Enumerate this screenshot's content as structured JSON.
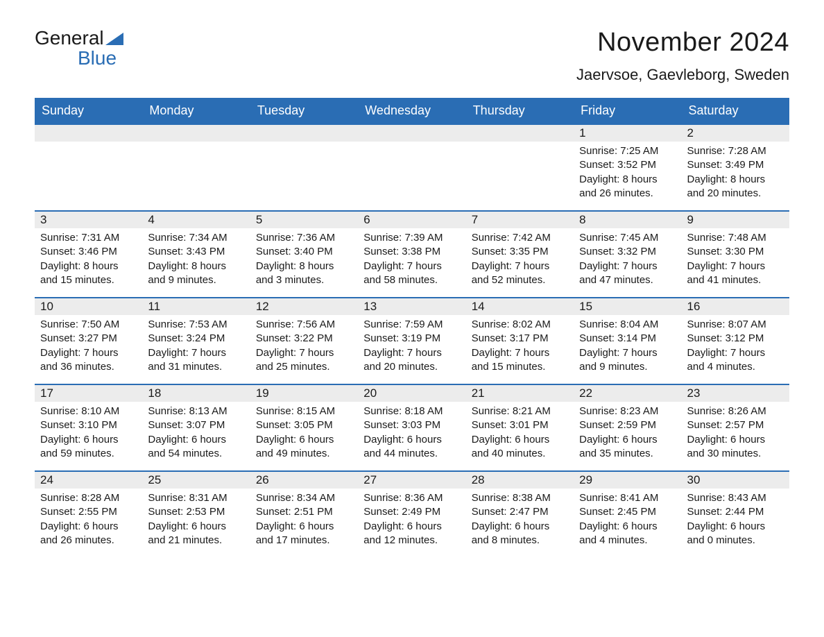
{
  "logo": {
    "word1": "General",
    "word2": "Blue"
  },
  "title": "November 2024",
  "location": "Jaervsoe, Gaevleborg, Sweden",
  "colors": {
    "brand_blue": "#2a6db4",
    "header_bg": "#2a6db4",
    "header_text": "#ffffff",
    "daynum_bg": "#ececec",
    "row_border": "#2a6db4",
    "text": "#1a1a1a",
    "page_bg": "#ffffff"
  },
  "typography": {
    "month_title_fontsize": 38,
    "location_fontsize": 22,
    "dayheader_fontsize": 18,
    "daynum_fontsize": 17,
    "body_fontsize": 15,
    "logo_fontsize": 28
  },
  "day_headers": [
    "Sunday",
    "Monday",
    "Tuesday",
    "Wednesday",
    "Thursday",
    "Friday",
    "Saturday"
  ],
  "labels": {
    "sunrise": "Sunrise",
    "sunset": "Sunset",
    "daylight": "Daylight"
  },
  "weeks": [
    [
      null,
      null,
      null,
      null,
      null,
      {
        "n": "1",
        "sunrise": "7:25 AM",
        "sunset": "3:52 PM",
        "dl1": "8 hours",
        "dl2": "and 26 minutes."
      },
      {
        "n": "2",
        "sunrise": "7:28 AM",
        "sunset": "3:49 PM",
        "dl1": "8 hours",
        "dl2": "and 20 minutes."
      }
    ],
    [
      {
        "n": "3",
        "sunrise": "7:31 AM",
        "sunset": "3:46 PM",
        "dl1": "8 hours",
        "dl2": "and 15 minutes."
      },
      {
        "n": "4",
        "sunrise": "7:34 AM",
        "sunset": "3:43 PM",
        "dl1": "8 hours",
        "dl2": "and 9 minutes."
      },
      {
        "n": "5",
        "sunrise": "7:36 AM",
        "sunset": "3:40 PM",
        "dl1": "8 hours",
        "dl2": "and 3 minutes."
      },
      {
        "n": "6",
        "sunrise": "7:39 AM",
        "sunset": "3:38 PM",
        "dl1": "7 hours",
        "dl2": "and 58 minutes."
      },
      {
        "n": "7",
        "sunrise": "7:42 AM",
        "sunset": "3:35 PM",
        "dl1": "7 hours",
        "dl2": "and 52 minutes."
      },
      {
        "n": "8",
        "sunrise": "7:45 AM",
        "sunset": "3:32 PM",
        "dl1": "7 hours",
        "dl2": "and 47 minutes."
      },
      {
        "n": "9",
        "sunrise": "7:48 AM",
        "sunset": "3:30 PM",
        "dl1": "7 hours",
        "dl2": "and 41 minutes."
      }
    ],
    [
      {
        "n": "10",
        "sunrise": "7:50 AM",
        "sunset": "3:27 PM",
        "dl1": "7 hours",
        "dl2": "and 36 minutes."
      },
      {
        "n": "11",
        "sunrise": "7:53 AM",
        "sunset": "3:24 PM",
        "dl1": "7 hours",
        "dl2": "and 31 minutes."
      },
      {
        "n": "12",
        "sunrise": "7:56 AM",
        "sunset": "3:22 PM",
        "dl1": "7 hours",
        "dl2": "and 25 minutes."
      },
      {
        "n": "13",
        "sunrise": "7:59 AM",
        "sunset": "3:19 PM",
        "dl1": "7 hours",
        "dl2": "and 20 minutes."
      },
      {
        "n": "14",
        "sunrise": "8:02 AM",
        "sunset": "3:17 PM",
        "dl1": "7 hours",
        "dl2": "and 15 minutes."
      },
      {
        "n": "15",
        "sunrise": "8:04 AM",
        "sunset": "3:14 PM",
        "dl1": "7 hours",
        "dl2": "and 9 minutes."
      },
      {
        "n": "16",
        "sunrise": "8:07 AM",
        "sunset": "3:12 PM",
        "dl1": "7 hours",
        "dl2": "and 4 minutes."
      }
    ],
    [
      {
        "n": "17",
        "sunrise": "8:10 AM",
        "sunset": "3:10 PM",
        "dl1": "6 hours",
        "dl2": "and 59 minutes."
      },
      {
        "n": "18",
        "sunrise": "8:13 AM",
        "sunset": "3:07 PM",
        "dl1": "6 hours",
        "dl2": "and 54 minutes."
      },
      {
        "n": "19",
        "sunrise": "8:15 AM",
        "sunset": "3:05 PM",
        "dl1": "6 hours",
        "dl2": "and 49 minutes."
      },
      {
        "n": "20",
        "sunrise": "8:18 AM",
        "sunset": "3:03 PM",
        "dl1": "6 hours",
        "dl2": "and 44 minutes."
      },
      {
        "n": "21",
        "sunrise": "8:21 AM",
        "sunset": "3:01 PM",
        "dl1": "6 hours",
        "dl2": "and 40 minutes."
      },
      {
        "n": "22",
        "sunrise": "8:23 AM",
        "sunset": "2:59 PM",
        "dl1": "6 hours",
        "dl2": "and 35 minutes."
      },
      {
        "n": "23",
        "sunrise": "8:26 AM",
        "sunset": "2:57 PM",
        "dl1": "6 hours",
        "dl2": "and 30 minutes."
      }
    ],
    [
      {
        "n": "24",
        "sunrise": "8:28 AM",
        "sunset": "2:55 PM",
        "dl1": "6 hours",
        "dl2": "and 26 minutes."
      },
      {
        "n": "25",
        "sunrise": "8:31 AM",
        "sunset": "2:53 PM",
        "dl1": "6 hours",
        "dl2": "and 21 minutes."
      },
      {
        "n": "26",
        "sunrise": "8:34 AM",
        "sunset": "2:51 PM",
        "dl1": "6 hours",
        "dl2": "and 17 minutes."
      },
      {
        "n": "27",
        "sunrise": "8:36 AM",
        "sunset": "2:49 PM",
        "dl1": "6 hours",
        "dl2": "and 12 minutes."
      },
      {
        "n": "28",
        "sunrise": "8:38 AM",
        "sunset": "2:47 PM",
        "dl1": "6 hours",
        "dl2": "and 8 minutes."
      },
      {
        "n": "29",
        "sunrise": "8:41 AM",
        "sunset": "2:45 PM",
        "dl1": "6 hours",
        "dl2": "and 4 minutes."
      },
      {
        "n": "30",
        "sunrise": "8:43 AM",
        "sunset": "2:44 PM",
        "dl1": "6 hours",
        "dl2": "and 0 minutes."
      }
    ]
  ]
}
